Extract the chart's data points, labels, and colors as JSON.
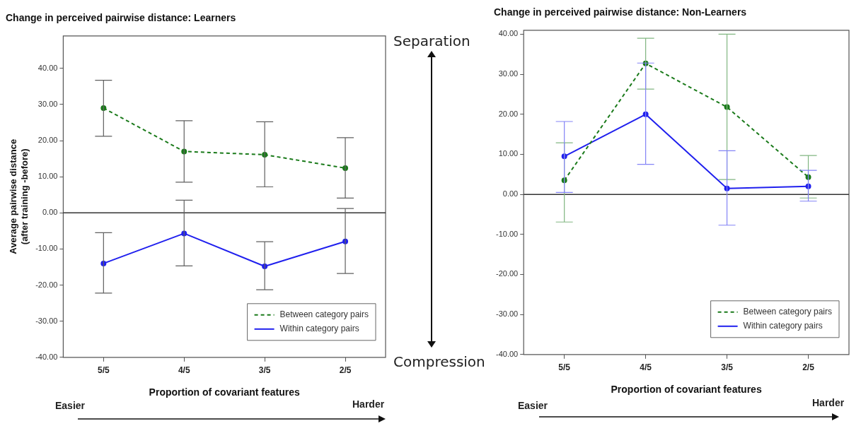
{
  "chart_data": [
    {
      "type": "line",
      "title": "Change in perceived pairwise distance: Learners",
      "xlabel": "Proportion of covariant features",
      "ylabel": "Average pairwise distance\n(after training -before)",
      "categories": [
        "5/5",
        "4/5",
        "3/5",
        "2/5"
      ],
      "series": [
        {
          "name": "Between category pairs",
          "color": "#1a7a1a",
          "line_style": "dashed",
          "values": [
            29,
            17,
            16.1,
            12.4
          ],
          "errors": [
            [
              21.2,
              36.7
            ],
            [
              8.5,
              25.5
            ],
            [
              7.2,
              25.2
            ],
            [
              4.1,
              20.8
            ]
          ]
        },
        {
          "name": "Within category pairs",
          "color": "#2020ee",
          "line_style": "solid",
          "values": [
            -14,
            -5.7,
            -14.8,
            -7.9
          ],
          "errors": [
            [
              -22.2,
              -5.5
            ],
            [
              -14.7,
              3.5
            ],
            [
              -21.3,
              -8
            ],
            [
              -16.8,
              1.2
            ]
          ]
        }
      ],
      "ylim": [
        -40,
        49
      ],
      "yticks": [
        {
          "value": -40,
          "label": "-40.00"
        },
        {
          "value": -30,
          "label": "-30.00"
        },
        {
          "value": -20,
          "label": "-20.00"
        },
        {
          "value": -10,
          "label": "-10.00"
        },
        {
          "value": 0,
          "label": "0.00"
        },
        {
          "value": 10,
          "label": "10.00"
        },
        {
          "value": 20,
          "label": "20.00"
        },
        {
          "value": 30,
          "label": "30.00"
        },
        {
          "value": 40,
          "label": "40.00"
        }
      ],
      "ref_lines": [
        {
          "axis": "y",
          "value": 0,
          "color": "#333333"
        }
      ],
      "marker": "circle",
      "grid": false,
      "legend": "bottom right",
      "annotations": [
        "Separation",
        "Compression",
        "Easier",
        "Harder"
      ]
    },
    {
      "type": "line",
      "title": "Change in perceived pairwise distance: Non-Learners",
      "xlabel": "Proportion of covariant features",
      "categories": [
        "5/5",
        "4/5",
        "3/5",
        "2/5"
      ],
      "series": [
        {
          "name": "Between category pairs",
          "color": "#1a7a1a",
          "line_style": "dashed",
          "values": [
            3.5,
            32.7,
            21.8,
            4.3
          ],
          "errors": [
            [
              -6.9,
              12.9
            ],
            [
              26.3,
              39
            ],
            [
              3.7,
              40
            ],
            [
              -0.9,
              9.7
            ]
          ]
        },
        {
          "name": "Within category pairs",
          "color": "#2020ee",
          "line_style": "solid",
          "values": [
            9.5,
            20,
            1.5,
            2
          ],
          "errors": [
            [
              0.5,
              18.2
            ],
            [
              7.5,
              32.8
            ],
            [
              -7.7,
              10.9
            ],
            [
              -1.7,
              6
            ]
          ]
        }
      ],
      "ylim": [
        -40,
        41
      ],
      "yticks": [
        {
          "value": -40,
          "label": "-40.00"
        },
        {
          "value": -30,
          "label": "-30.00"
        },
        {
          "value": -20,
          "label": "-20.00"
        },
        {
          "value": -10,
          "label": "-10.00"
        },
        {
          "value": 0,
          "label": "0.00"
        },
        {
          "value": 10,
          "label": "10.00"
        },
        {
          "value": 20,
          "label": "20.00"
        },
        {
          "value": 30,
          "label": "30.00"
        },
        {
          "value": 40,
          "label": "40.00"
        }
      ],
      "ref_lines": [
        {
          "axis": "y",
          "value": 0,
          "color": "#333333"
        }
      ],
      "marker": "circle",
      "grid": false,
      "legend": "bottom right",
      "annotations": [
        "Easier",
        "Harder"
      ]
    }
  ]
}
